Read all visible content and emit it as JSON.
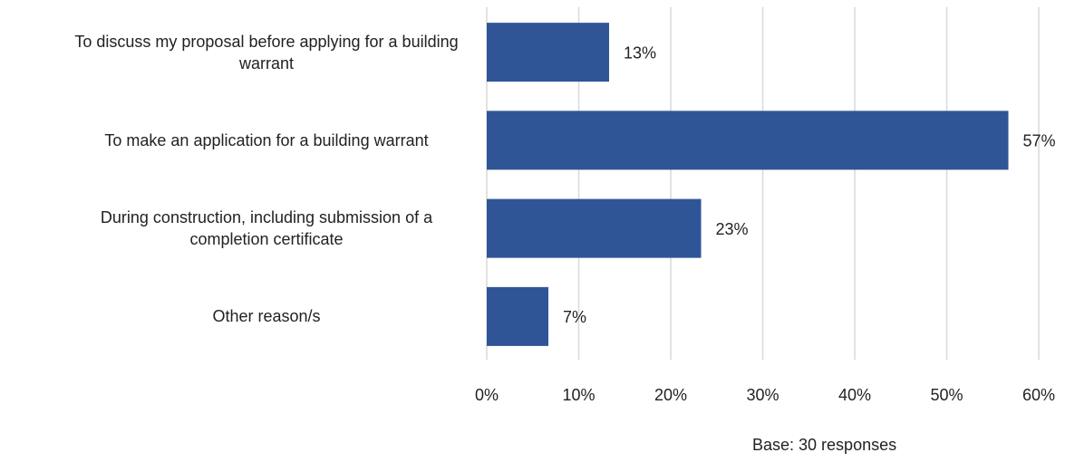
{
  "chart_data": {
    "type": "bar",
    "orientation": "horizontal",
    "categories": [
      "To discuss my proposal before applying for a building warrant",
      "To make an application for a building warrant",
      "During construction, including submission of a completion certificate",
      "Other reason/s"
    ],
    "values": [
      13.3,
      56.7,
      23.3,
      6.7
    ],
    "value_labels": [
      "13%",
      "57%",
      "23%",
      "7%"
    ],
    "color": "#2f5597",
    "xlim": [
      0,
      60
    ],
    "xticks": [
      {
        "value": 0,
        "label": "0%"
      },
      {
        "value": 10,
        "label": "10%"
      },
      {
        "value": 20,
        "label": "20%"
      },
      {
        "value": 30,
        "label": "30%"
      },
      {
        "value": 40,
        "label": "40%"
      },
      {
        "value": 50,
        "label": "50%"
      },
      {
        "value": 60,
        "label": "60%"
      }
    ],
    "grid": true,
    "note": "Base: 30 responses"
  }
}
